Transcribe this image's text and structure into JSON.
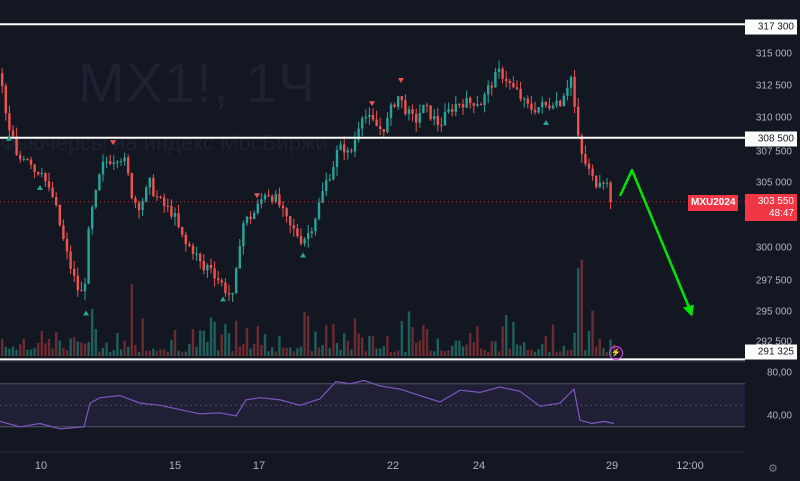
{
  "watermark": {
    "symbol": "MX1!, 1Ч",
    "description": "Фьючерсы на индекс МосБиржи"
  },
  "price_axis": {
    "labels": [
      "315 000",
      "312 500",
      "310 000",
      "307 500",
      "305 000",
      "300 000",
      "297 500",
      "295 000",
      "292 500"
    ],
    "levels": [
      "317 300",
      "308 500",
      "291 325"
    ],
    "current_price": "303 550",
    "countdown": "48:47",
    "symbol_badge": "MXU2024"
  },
  "time_axis": {
    "labels": [
      "10",
      "15",
      "17",
      "22",
      "24",
      "29",
      "12:00"
    ]
  },
  "rsi": {
    "labels": [
      "80,00",
      "40,00"
    ]
  },
  "colors": {
    "background": "#131722",
    "up": "#26a69a",
    "down": "#ef5350",
    "level_line": "#ffffff",
    "forecast_arrow": "#00e600",
    "rsi_line": "#7e57c2",
    "current_price": "#f23645"
  },
  "icons": {
    "settings": "gear-icon",
    "alert": "lightning-icon"
  },
  "chart_data": {
    "type": "candlestick",
    "symbol": "MXU2024",
    "interval": "1Ч",
    "x_ticks": [
      "10",
      "15",
      "17",
      "22",
      "24",
      "29",
      "12:00"
    ],
    "ylim": [
      290500,
      318500
    ],
    "horizontal_levels": [
      317300,
      308500,
      291325
    ],
    "current_price": 303550,
    "close_path": [
      {
        "x": 0,
        "y": 313500
      },
      {
        "x": 6,
        "y": 312000
      },
      {
        "x": 10,
        "y": 309000
      },
      {
        "x": 15,
        "y": 308600
      },
      {
        "x": 20,
        "y": 306500
      },
      {
        "x": 25,
        "y": 307200
      },
      {
        "x": 32,
        "y": 307000
      },
      {
        "x": 38,
        "y": 305800
      },
      {
        "x": 44,
        "y": 306200
      },
      {
        "x": 50,
        "y": 304500
      },
      {
        "x": 56,
        "y": 303800
      },
      {
        "x": 62,
        "y": 301800
      },
      {
        "x": 68,
        "y": 299800
      },
      {
        "x": 74,
        "y": 298200
      },
      {
        "x": 80,
        "y": 296800
      },
      {
        "x": 86,
        "y": 296200
      },
      {
        "x": 92,
        "y": 302000
      },
      {
        "x": 98,
        "y": 304000
      },
      {
        "x": 104,
        "y": 306200
      },
      {
        "x": 110,
        "y": 306800
      },
      {
        "x": 116,
        "y": 306900
      },
      {
        "x": 122,
        "y": 307200
      },
      {
        "x": 128,
        "y": 306500
      },
      {
        "x": 134,
        "y": 304200
      },
      {
        "x": 140,
        "y": 303200
      },
      {
        "x": 146,
        "y": 303800
      },
      {
        "x": 152,
        "y": 305000
      },
      {
        "x": 158,
        "y": 304000
      },
      {
        "x": 164,
        "y": 303400
      },
      {
        "x": 170,
        "y": 303000
      },
      {
        "x": 176,
        "y": 302600
      },
      {
        "x": 182,
        "y": 301200
      },
      {
        "x": 188,
        "y": 300200
      },
      {
        "x": 194,
        "y": 300000
      },
      {
        "x": 200,
        "y": 299200
      },
      {
        "x": 206,
        "y": 298200
      },
      {
        "x": 212,
        "y": 298800
      },
      {
        "x": 218,
        "y": 297800
      },
      {
        "x": 224,
        "y": 297200
      },
      {
        "x": 230,
        "y": 296500
      },
      {
        "x": 236,
        "y": 296000
      },
      {
        "x": 240,
        "y": 299000
      },
      {
        "x": 244,
        "y": 301800
      },
      {
        "x": 250,
        "y": 302200
      },
      {
        "x": 256,
        "y": 302600
      },
      {
        "x": 262,
        "y": 303400
      },
      {
        "x": 268,
        "y": 304400
      },
      {
        "x": 274,
        "y": 304000
      },
      {
        "x": 280,
        "y": 303600
      },
      {
        "x": 286,
        "y": 302500
      },
      {
        "x": 292,
        "y": 301600
      },
      {
        "x": 298,
        "y": 301200
      },
      {
        "x": 304,
        "y": 300600
      },
      {
        "x": 310,
        "y": 301000
      },
      {
        "x": 316,
        "y": 302000
      },
      {
        "x": 322,
        "y": 303500
      },
      {
        "x": 328,
        "y": 305000
      },
      {
        "x": 334,
        "y": 306000
      },
      {
        "x": 340,
        "y": 307500
      },
      {
        "x": 346,
        "y": 307800
      },
      {
        "x": 352,
        "y": 307000
      },
      {
        "x": 358,
        "y": 308600
      },
      {
        "x": 364,
        "y": 310500
      },
      {
        "x": 370,
        "y": 310000
      },
      {
        "x": 376,
        "y": 309600
      },
      {
        "x": 382,
        "y": 309200
      },
      {
        "x": 388,
        "y": 309400
      },
      {
        "x": 394,
        "y": 310800
      },
      {
        "x": 400,
        "y": 311800
      },
      {
        "x": 406,
        "y": 311000
      },
      {
        "x": 412,
        "y": 310200
      },
      {
        "x": 418,
        "y": 309800
      },
      {
        "x": 424,
        "y": 310800
      },
      {
        "x": 430,
        "y": 310600
      },
      {
        "x": 436,
        "y": 310000
      },
      {
        "x": 442,
        "y": 309500
      },
      {
        "x": 448,
        "y": 310200
      },
      {
        "x": 454,
        "y": 310800
      },
      {
        "x": 460,
        "y": 311200
      },
      {
        "x": 466,
        "y": 311300
      },
      {
        "x": 472,
        "y": 311200
      },
      {
        "x": 478,
        "y": 311400
      },
      {
        "x": 484,
        "y": 311200
      },
      {
        "x": 490,
        "y": 312200
      },
      {
        "x": 496,
        "y": 313000
      },
      {
        "x": 502,
        "y": 313600
      },
      {
        "x": 508,
        "y": 313200
      },
      {
        "x": 514,
        "y": 312400
      },
      {
        "x": 520,
        "y": 312000
      },
      {
        "x": 526,
        "y": 311200
      },
      {
        "x": 532,
        "y": 310800
      },
      {
        "x": 538,
        "y": 310800
      },
      {
        "x": 544,
        "y": 311000
      },
      {
        "x": 550,
        "y": 310900
      },
      {
        "x": 556,
        "y": 311500
      },
      {
        "x": 562,
        "y": 311200
      },
      {
        "x": 568,
        "y": 312400
      },
      {
        "x": 574,
        "y": 313300
      },
      {
        "x": 578,
        "y": 310000
      },
      {
        "x": 582,
        "y": 307500
      },
      {
        "x": 586,
        "y": 306800
      },
      {
        "x": 590,
        "y": 306200
      },
      {
        "x": 594,
        "y": 305400
      },
      {
        "x": 598,
        "y": 305000
      },
      {
        "x": 604,
        "y": 305600
      },
      {
        "x": 610,
        "y": 304800
      },
      {
        "x": 614,
        "y": 303550
      }
    ],
    "forecast_path": [
      {
        "x": 620,
        "y": 304000
      },
      {
        "x": 632,
        "y": 306000
      },
      {
        "x": 692,
        "y": 294800
      }
    ],
    "rsi_ylim": [
      20,
      100
    ],
    "rsi_band": [
      30,
      70
    ],
    "rsi_path": [
      {
        "x": 0,
        "y": 35
      },
      {
        "x": 20,
        "y": 30
      },
      {
        "x": 40,
        "y": 33
      },
      {
        "x": 60,
        "y": 28
      },
      {
        "x": 84,
        "y": 30
      },
      {
        "x": 90,
        "y": 52
      },
      {
        "x": 100,
        "y": 57
      },
      {
        "x": 120,
        "y": 59
      },
      {
        "x": 140,
        "y": 52
      },
      {
        "x": 160,
        "y": 50
      },
      {
        "x": 180,
        "y": 46
      },
      {
        "x": 200,
        "y": 42
      },
      {
        "x": 220,
        "y": 43
      },
      {
        "x": 236,
        "y": 40
      },
      {
        "x": 246,
        "y": 55
      },
      {
        "x": 260,
        "y": 57
      },
      {
        "x": 280,
        "y": 55
      },
      {
        "x": 300,
        "y": 50
      },
      {
        "x": 320,
        "y": 56
      },
      {
        "x": 336,
        "y": 72
      },
      {
        "x": 350,
        "y": 70
      },
      {
        "x": 364,
        "y": 73
      },
      {
        "x": 380,
        "y": 68
      },
      {
        "x": 400,
        "y": 65
      },
      {
        "x": 420,
        "y": 59
      },
      {
        "x": 440,
        "y": 53
      },
      {
        "x": 460,
        "y": 64
      },
      {
        "x": 480,
        "y": 62
      },
      {
        "x": 500,
        "y": 67
      },
      {
        "x": 520,
        "y": 63
      },
      {
        "x": 540,
        "y": 49
      },
      {
        "x": 560,
        "y": 52
      },
      {
        "x": 574,
        "y": 65
      },
      {
        "x": 580,
        "y": 36
      },
      {
        "x": 592,
        "y": 33
      },
      {
        "x": 604,
        "y": 35
      },
      {
        "x": 614,
        "y": 33
      }
    ],
    "sell_markers_x": [
      113,
      257,
      372,
      401
    ],
    "buy_markers_x": [
      9,
      40,
      86,
      223,
      303,
      546
    ],
    "volume_note": "volume histogram along bottom"
  }
}
